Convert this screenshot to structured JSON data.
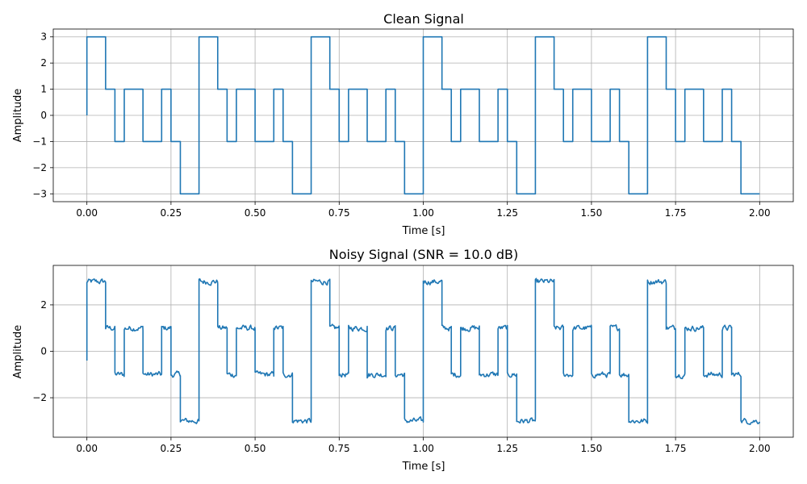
{
  "colors": {
    "line": "#1f77b4",
    "grid": "#b0b0b0"
  },
  "chart_data": [
    {
      "type": "line",
      "title": "Clean Signal",
      "xlabel": "Time [s]",
      "ylabel": "Amplitude",
      "xlim": [
        -0.1,
        2.1
      ],
      "ylim": [
        -3.3,
        3.3
      ],
      "xticks": [
        0.0,
        0.25,
        0.5,
        0.75,
        1.0,
        1.25,
        1.5,
        1.75,
        2.0
      ],
      "xtick_labels": [
        "0.00",
        "0.25",
        "0.50",
        "0.75",
        "1.00",
        "1.25",
        "1.50",
        "1.75",
        "2.00"
      ],
      "yticks": [
        3,
        2,
        1,
        0,
        -1,
        -2,
        -3
      ],
      "ytick_labels": [
        "3",
        "2",
        "1",
        "0",
        "−1",
        "−2",
        "−3"
      ],
      "grid": true,
      "step": true,
      "x": [
        0.0,
        0.0,
        0.0556,
        0.0833,
        0.1111,
        0.1667,
        0.2222,
        0.25,
        0.2778,
        0.3333,
        0.3889,
        0.4167,
        0.4444,
        0.5,
        0.5556,
        0.5833,
        0.6111,
        0.6667,
        0.7222,
        0.75,
        0.7778,
        0.8333,
        0.8889,
        0.9167,
        0.9444,
        1.0,
        1.0556,
        1.0833,
        1.1111,
        1.1667,
        1.2222,
        1.25,
        1.2778,
        1.3333,
        1.3889,
        1.4167,
        1.4444,
        1.5,
        1.5556,
        1.5833,
        1.6111,
        1.6667,
        1.7222,
        1.75,
        1.7778,
        1.8333,
        1.8889,
        1.9167,
        1.9444,
        2.0
      ],
      "y": [
        0,
        3,
        1,
        -1,
        1,
        -1,
        1,
        -1,
        -3,
        3,
        1,
        -1,
        1,
        -1,
        1,
        -1,
        -3,
        3,
        1,
        -1,
        1,
        -1,
        1,
        -1,
        -3,
        3,
        1,
        -1,
        1,
        -1,
        1,
        -1,
        -3,
        3,
        1,
        -1,
        1,
        -1,
        1,
        -1,
        -3,
        3,
        1,
        -1,
        1,
        -1,
        1,
        -1,
        -3,
        -3
      ]
    },
    {
      "type": "line",
      "title": "Noisy Signal (SNR = 10.0 dB)",
      "xlabel": "Time [s]",
      "ylabel": "Amplitude",
      "xlim": [
        -0.1,
        2.1
      ],
      "ylim": [
        -3.7,
        3.7
      ],
      "xticks": [
        0.0,
        0.25,
        0.5,
        0.75,
        1.0,
        1.25,
        1.5,
        1.75,
        2.0
      ],
      "xtick_labels": [
        "0.00",
        "0.25",
        "0.50",
        "0.75",
        "1.00",
        "1.25",
        "1.50",
        "1.75",
        "2.00"
      ],
      "yticks": [
        2,
        0,
        -2
      ],
      "ytick_labels": [
        "2",
        "0",
        "−2"
      ],
      "grid": true,
      "step": false,
      "noise_amplitude": 0.22,
      "x": [
        0.0,
        0.0,
        0.0556,
        0.0833,
        0.1111,
        0.1667,
        0.2222,
        0.25,
        0.2778,
        0.3333,
        0.3889,
        0.4167,
        0.4444,
        0.5,
        0.5556,
        0.5833,
        0.6111,
        0.6667,
        0.7222,
        0.75,
        0.7778,
        0.8333,
        0.8889,
        0.9167,
        0.9444,
        1.0,
        1.0556,
        1.0833,
        1.1111,
        1.1667,
        1.2222,
        1.25,
        1.2778,
        1.3333,
        1.3889,
        1.4167,
        1.4444,
        1.5,
        1.5556,
        1.5833,
        1.6111,
        1.6667,
        1.7222,
        1.75,
        1.7778,
        1.8333,
        1.8889,
        1.9167,
        1.9444,
        2.0
      ],
      "y": [
        -0.4,
        3,
        1,
        -1,
        1,
        -1,
        1,
        -1,
        -3,
        3,
        1,
        -1,
        1,
        -1,
        1,
        -1,
        -3,
        3,
        1,
        -1,
        1,
        -1,
        1,
        -1,
        -3,
        3,
        1,
        -1,
        1,
        -1,
        1,
        -1,
        -3,
        3,
        1,
        -1,
        1,
        -1,
        1,
        -1,
        -3,
        3,
        1,
        -1,
        1,
        -1,
        1,
        -1,
        -3,
        -3
      ]
    }
  ]
}
